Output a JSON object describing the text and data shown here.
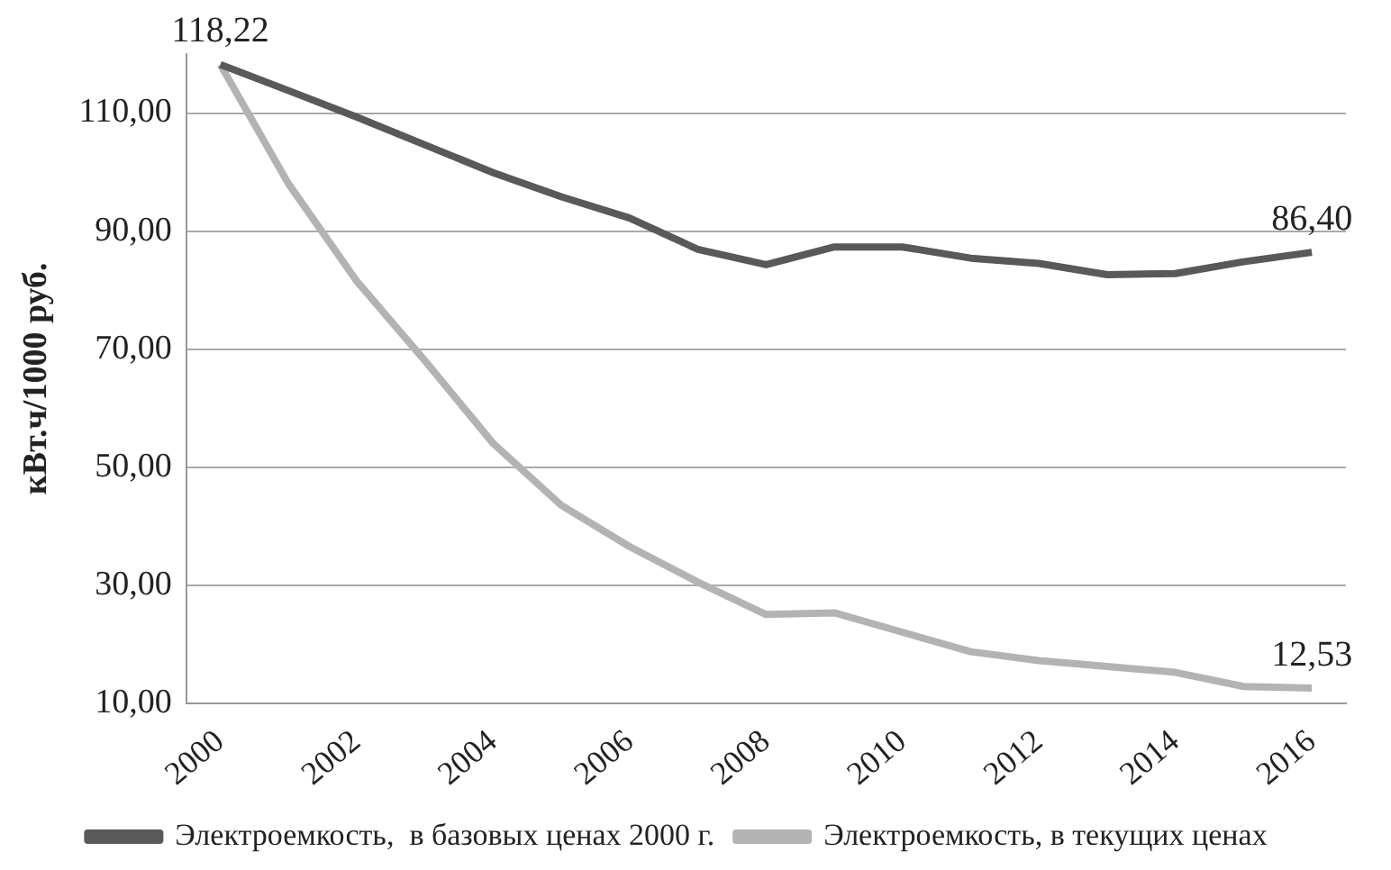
{
  "chart_data": {
    "type": "line",
    "ylabel": "кВт.ч/1000 руб.",
    "categories": [
      "2000",
      null,
      "2002",
      null,
      "2004",
      null,
      "2006",
      null,
      "2008",
      null,
      "2010",
      null,
      "2012",
      null,
      "2014",
      null,
      "2016"
    ],
    "series": [
      {
        "name": "Электроемкость,  в базовых ценах 2000 г.",
        "color": "#595959",
        "values": [
          118.22,
          113.8,
          109.3,
          104.6,
          99.9,
          95.8,
          92.2,
          86.9,
          84.3,
          87.3,
          87.3,
          85.4,
          84.5,
          82.6,
          82.8,
          84.8,
          86.4
        ],
        "value_labels": [
          "118,22",
          null,
          null,
          null,
          null,
          null,
          null,
          null,
          null,
          null,
          null,
          null,
          null,
          null,
          null,
          null,
          "86,40"
        ]
      },
      {
        "name": "Электроемкость, в текущих ценах",
        "color": "#b3b3b3",
        "values": [
          118.22,
          98,
          81.5,
          68,
          54,
          43.5,
          36.5,
          30.5,
          25,
          25.3,
          22,
          18.7,
          17.2,
          16.2,
          15.2,
          12.8,
          12.53
        ],
        "value_labels": [
          null,
          null,
          null,
          null,
          null,
          null,
          null,
          null,
          null,
          null,
          null,
          null,
          null,
          null,
          null,
          null,
          "12,53"
        ]
      }
    ],
    "ylim": [
      10,
      120
    ],
    "yticks": [
      {
        "value": 10,
        "label": "10,00"
      },
      {
        "value": 30,
        "label": "30,00"
      },
      {
        "value": 50,
        "label": "50,00"
      },
      {
        "value": 70,
        "label": "70,00"
      },
      {
        "value": 90,
        "label": "90,00"
      },
      {
        "value": 110,
        "label": "110,00"
      }
    ],
    "grid": "y",
    "legend": "bottom",
    "marker": "none",
    "line_style": "solid"
  }
}
